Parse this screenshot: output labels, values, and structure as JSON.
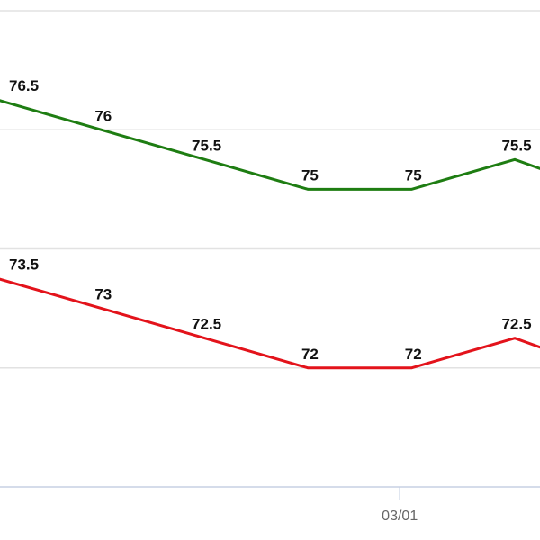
{
  "chart_data": {
    "type": "line",
    "x": [
      "",
      "",
      "",
      "",
      "",
      ""
    ],
    "x_tick_labels": [
      {
        "x_index": 4,
        "label": "03/01"
      }
    ],
    "ylim": [
      70,
      78
    ],
    "grid": true,
    "series": [
      {
        "color": "#1e7d12",
        "values": [
          76.5,
          76,
          75.5,
          75,
          75,
          75.5
        ],
        "labels": [
          "76.5",
          "76",
          "75.5",
          "75",
          "75",
          "75.5"
        ]
      },
      {
        "color": "#e3131b",
        "values": [
          73.5,
          73,
          72.5,
          72,
          72,
          72.5
        ],
        "labels": [
          "73.5",
          "73",
          "72.5",
          "72",
          "72",
          "72.5"
        ]
      }
    ]
  }
}
